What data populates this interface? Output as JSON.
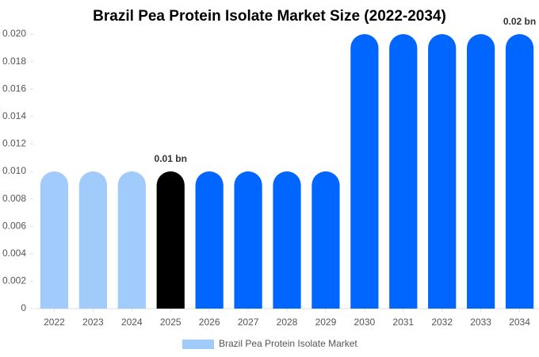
{
  "chart_data": {
    "type": "bar",
    "title": "Brazil Pea Protein Isolate Market Size (2022-2034)",
    "categories": [
      "2022",
      "2023",
      "2024",
      "2025",
      "2026",
      "2027",
      "2028",
      "2029",
      "2030",
      "2031",
      "2032",
      "2033",
      "2034"
    ],
    "series": [
      {
        "name": "Brazil Pea Protein Isolate Market",
        "color": "#a0cbfb",
        "values": [
          0.01,
          0.01,
          0.01,
          0.01,
          0.01,
          0.01,
          0.01,
          0.01,
          0.02,
          0.02,
          0.02,
          0.02,
          0.02
        ],
        "value_labels": [
          null,
          null,
          null,
          "0.01 bn",
          null,
          null,
          null,
          null,
          null,
          null,
          null,
          null,
          "0.02 bn"
        ],
        "colors": [
          "#a0cbfb",
          "#a0cbfb",
          "#a0cbfb",
          "#000000",
          "#0066ff",
          "#0066ff",
          "#0066ff",
          "#0066ff",
          "#0066ff",
          "#0066ff",
          "#0066ff",
          "#0066ff",
          "#0066ff"
        ]
      }
    ],
    "ylim": [
      0,
      0.02
    ],
    "yticks": [
      0,
      0.002,
      0.004,
      0.006,
      0.008,
      {
        "value": 0.01,
        "label": "0.010"
      },
      0.012,
      0.014,
      0.016,
      0.018,
      {
        "value": 0.02,
        "label": "0.020"
      }
    ],
    "grid": false,
    "legend": "bottom"
  }
}
